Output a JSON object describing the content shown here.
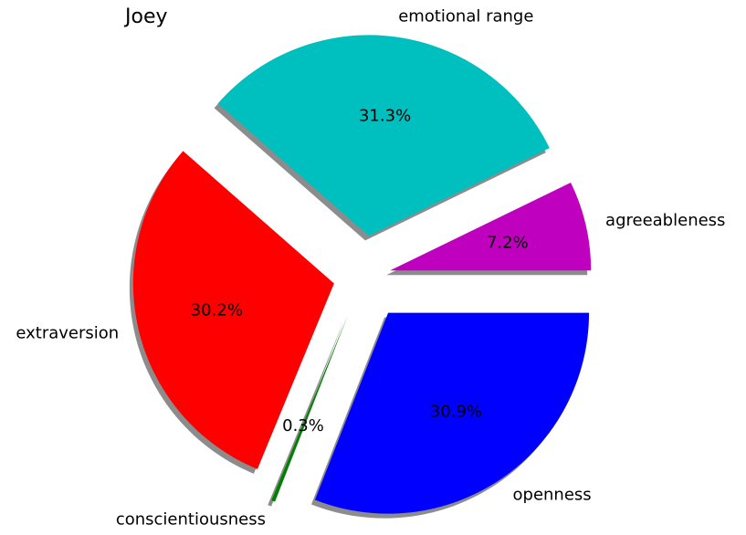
{
  "chart_data": {
    "type": "pie",
    "title": "Joey",
    "categories": [
      "agreeableness",
      "emotional range",
      "extraversion",
      "conscientiousness",
      "openness"
    ],
    "values": [
      7.2,
      31.3,
      30.2,
      0.3,
      30.9
    ],
    "value_labels": [
      "7.2%",
      "31.3%",
      "30.2%",
      "0.3%",
      "30.9%"
    ],
    "colors": [
      "#bf00bf",
      "#00bfbf",
      "#ff0000",
      "#008000",
      "#0000ff"
    ],
    "shadow": true
  }
}
